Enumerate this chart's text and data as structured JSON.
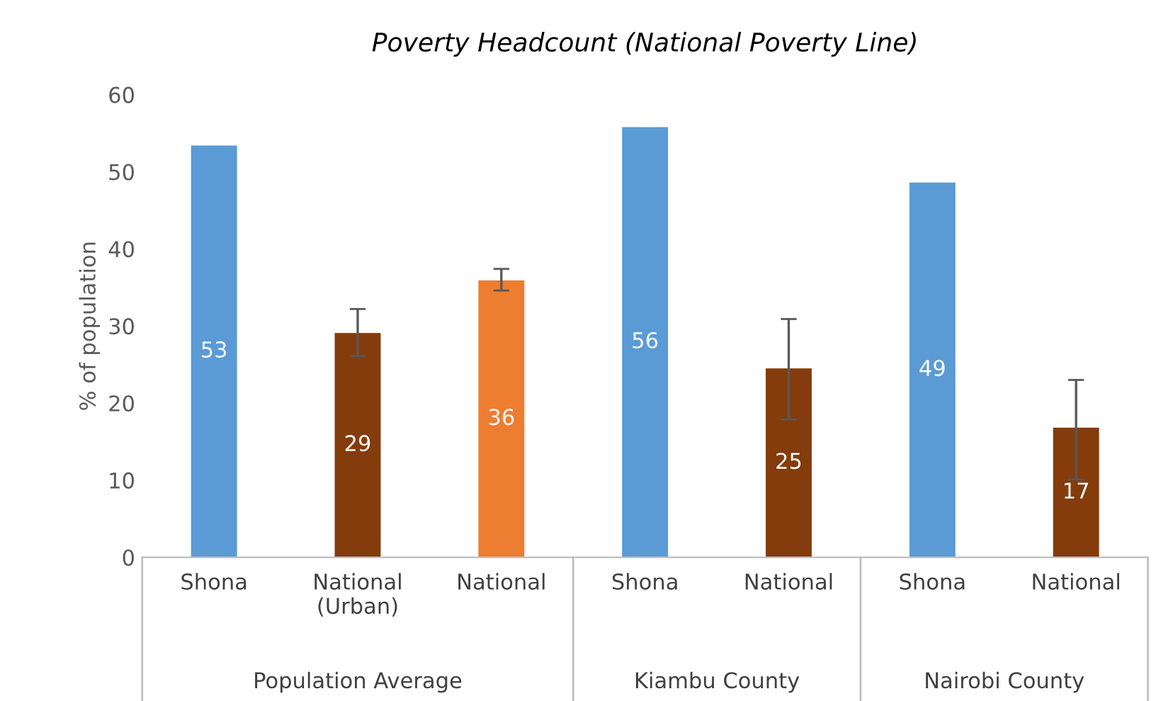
{
  "chart_data": {
    "type": "bar",
    "title": "Poverty Headcount (National Poverty Line)",
    "ylabel": "% of population",
    "categories": [
      "Shona",
      "National\n(Urban)",
      "National",
      "Shona",
      "National",
      "Shona",
      "National"
    ],
    "values": [
      53.4,
      29.1,
      35.9,
      55.8,
      24.5,
      48.6,
      16.8
    ],
    "colors": [
      "#5b9bd5",
      "#843c0c",
      "#ed7d31",
      "#5b9bd5",
      "#843c0c",
      "#5b9bd5",
      "#843c0c"
    ],
    "value_labels": [
      "53",
      "29",
      "36",
      "56",
      "25",
      "49",
      "17"
    ],
    "errors": [
      null,
      [
        26.1,
        32.2
      ],
      [
        34.6,
        37.4
      ],
      null,
      [
        17.9,
        30.9
      ],
      null,
      [
        10.1,
        23.0
      ]
    ],
    "annotations": [
      "Population Average",
      "Kiambu County",
      "Nairobi County"
    ],
    "ylim": [
      0,
      60
    ],
    "yticks": [
      0,
      10,
      20,
      30,
      40,
      50,
      60
    ],
    "grid": false,
    "legend": false
  }
}
